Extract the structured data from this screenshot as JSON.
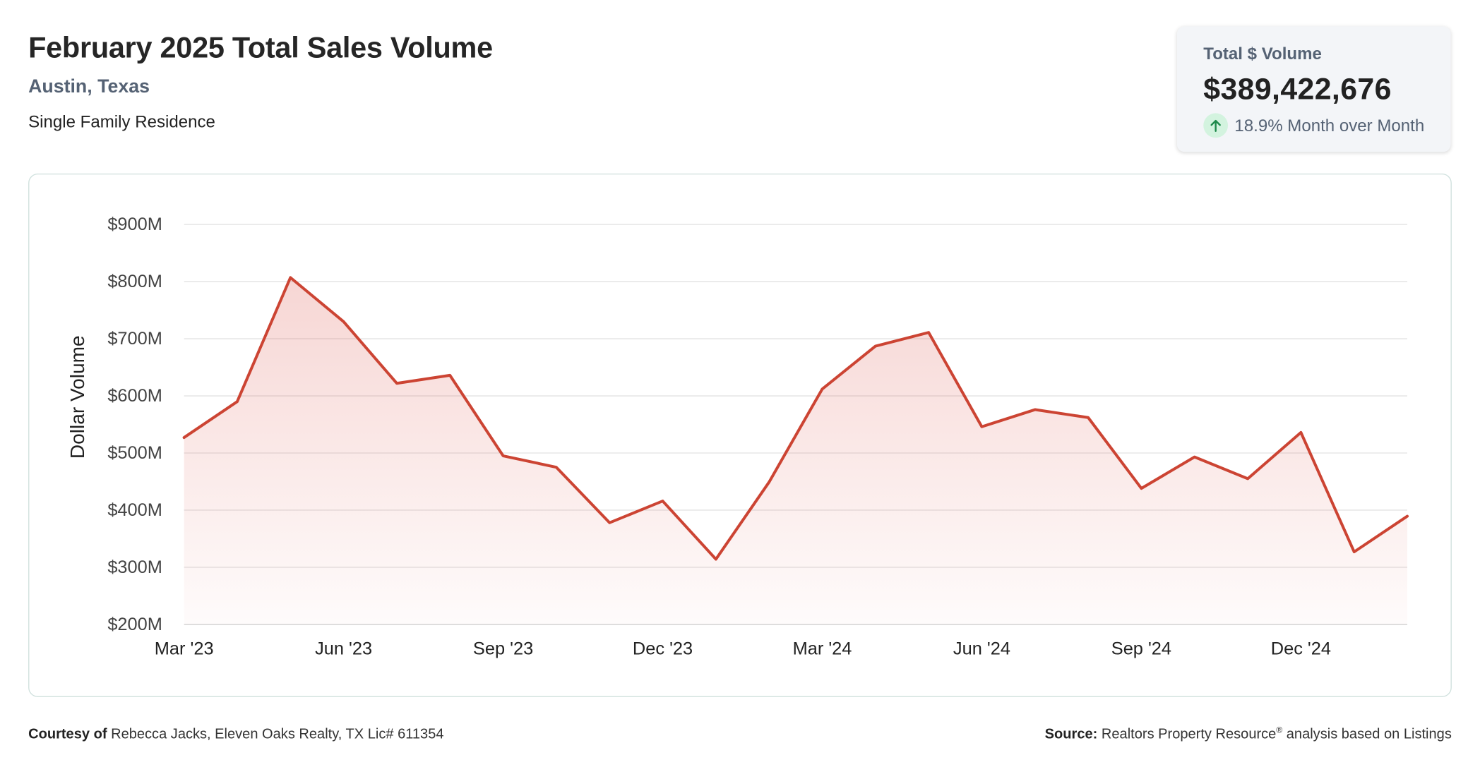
{
  "header": {
    "title": "February 2025 Total Sales Volume",
    "subtitle": "Austin, Texas",
    "category": "Single Family Residence"
  },
  "kpi": {
    "label": "Total $ Volume",
    "value": "$389,422,676",
    "change": "18.9% Month over Month",
    "direction": "up",
    "icon": "arrow-up-icon",
    "icon_color": "#1f8a4c",
    "icon_bg": "#d3f3df"
  },
  "chart_data": {
    "type": "area",
    "title": "",
    "xlabel": "",
    "ylabel": "Dollar Volume",
    "x": [
      "Mar '23",
      "Apr '23",
      "May '23",
      "Jun '23",
      "Jul '23",
      "Aug '23",
      "Sep '23",
      "Oct '23",
      "Nov '23",
      "Dec '23",
      "Jan '24",
      "Feb '24",
      "Mar '24",
      "Apr '24",
      "May '24",
      "Jun '24",
      "Jul '24",
      "Aug '24",
      "Sep '24",
      "Oct '24",
      "Nov '24",
      "Dec '24",
      "Jan '25",
      "Feb '25"
    ],
    "series": [
      {
        "values": [
          527,
          590,
          807,
          730,
          622,
          636,
          495,
          475,
          378,
          416,
          314,
          449,
          612,
          687,
          711,
          546,
          576,
          562,
          438,
          493,
          455,
          536,
          327,
          389.4
        ],
        "color": "#cc4433"
      }
    ],
    "x_tick_labels": [
      "Mar '23",
      "Jun '23",
      "Sep '23",
      "Dec '23",
      "Mar '24",
      "Jun '24",
      "Sep '24",
      "Dec '24"
    ],
    "y_ticks": [
      200,
      300,
      400,
      500,
      600,
      700,
      800,
      900
    ],
    "y_tick_labels": [
      "$200M",
      "$300M",
      "$400M",
      "$500M",
      "$600M",
      "$700M",
      "$800M",
      "$900M"
    ],
    "ylim": [
      200,
      900
    ],
    "units": "millions of dollars",
    "grid": true,
    "legend": "none"
  },
  "footer": {
    "courtesy_label": "Courtesy of",
    "courtesy_text": "Rebecca Jacks, Eleven Oaks Realty, TX Lic# 611354",
    "source_label": "Source:",
    "source_text_1": "Realtors Property Resource",
    "source_mark": "®",
    "source_text_2": "analysis based on Listings"
  }
}
